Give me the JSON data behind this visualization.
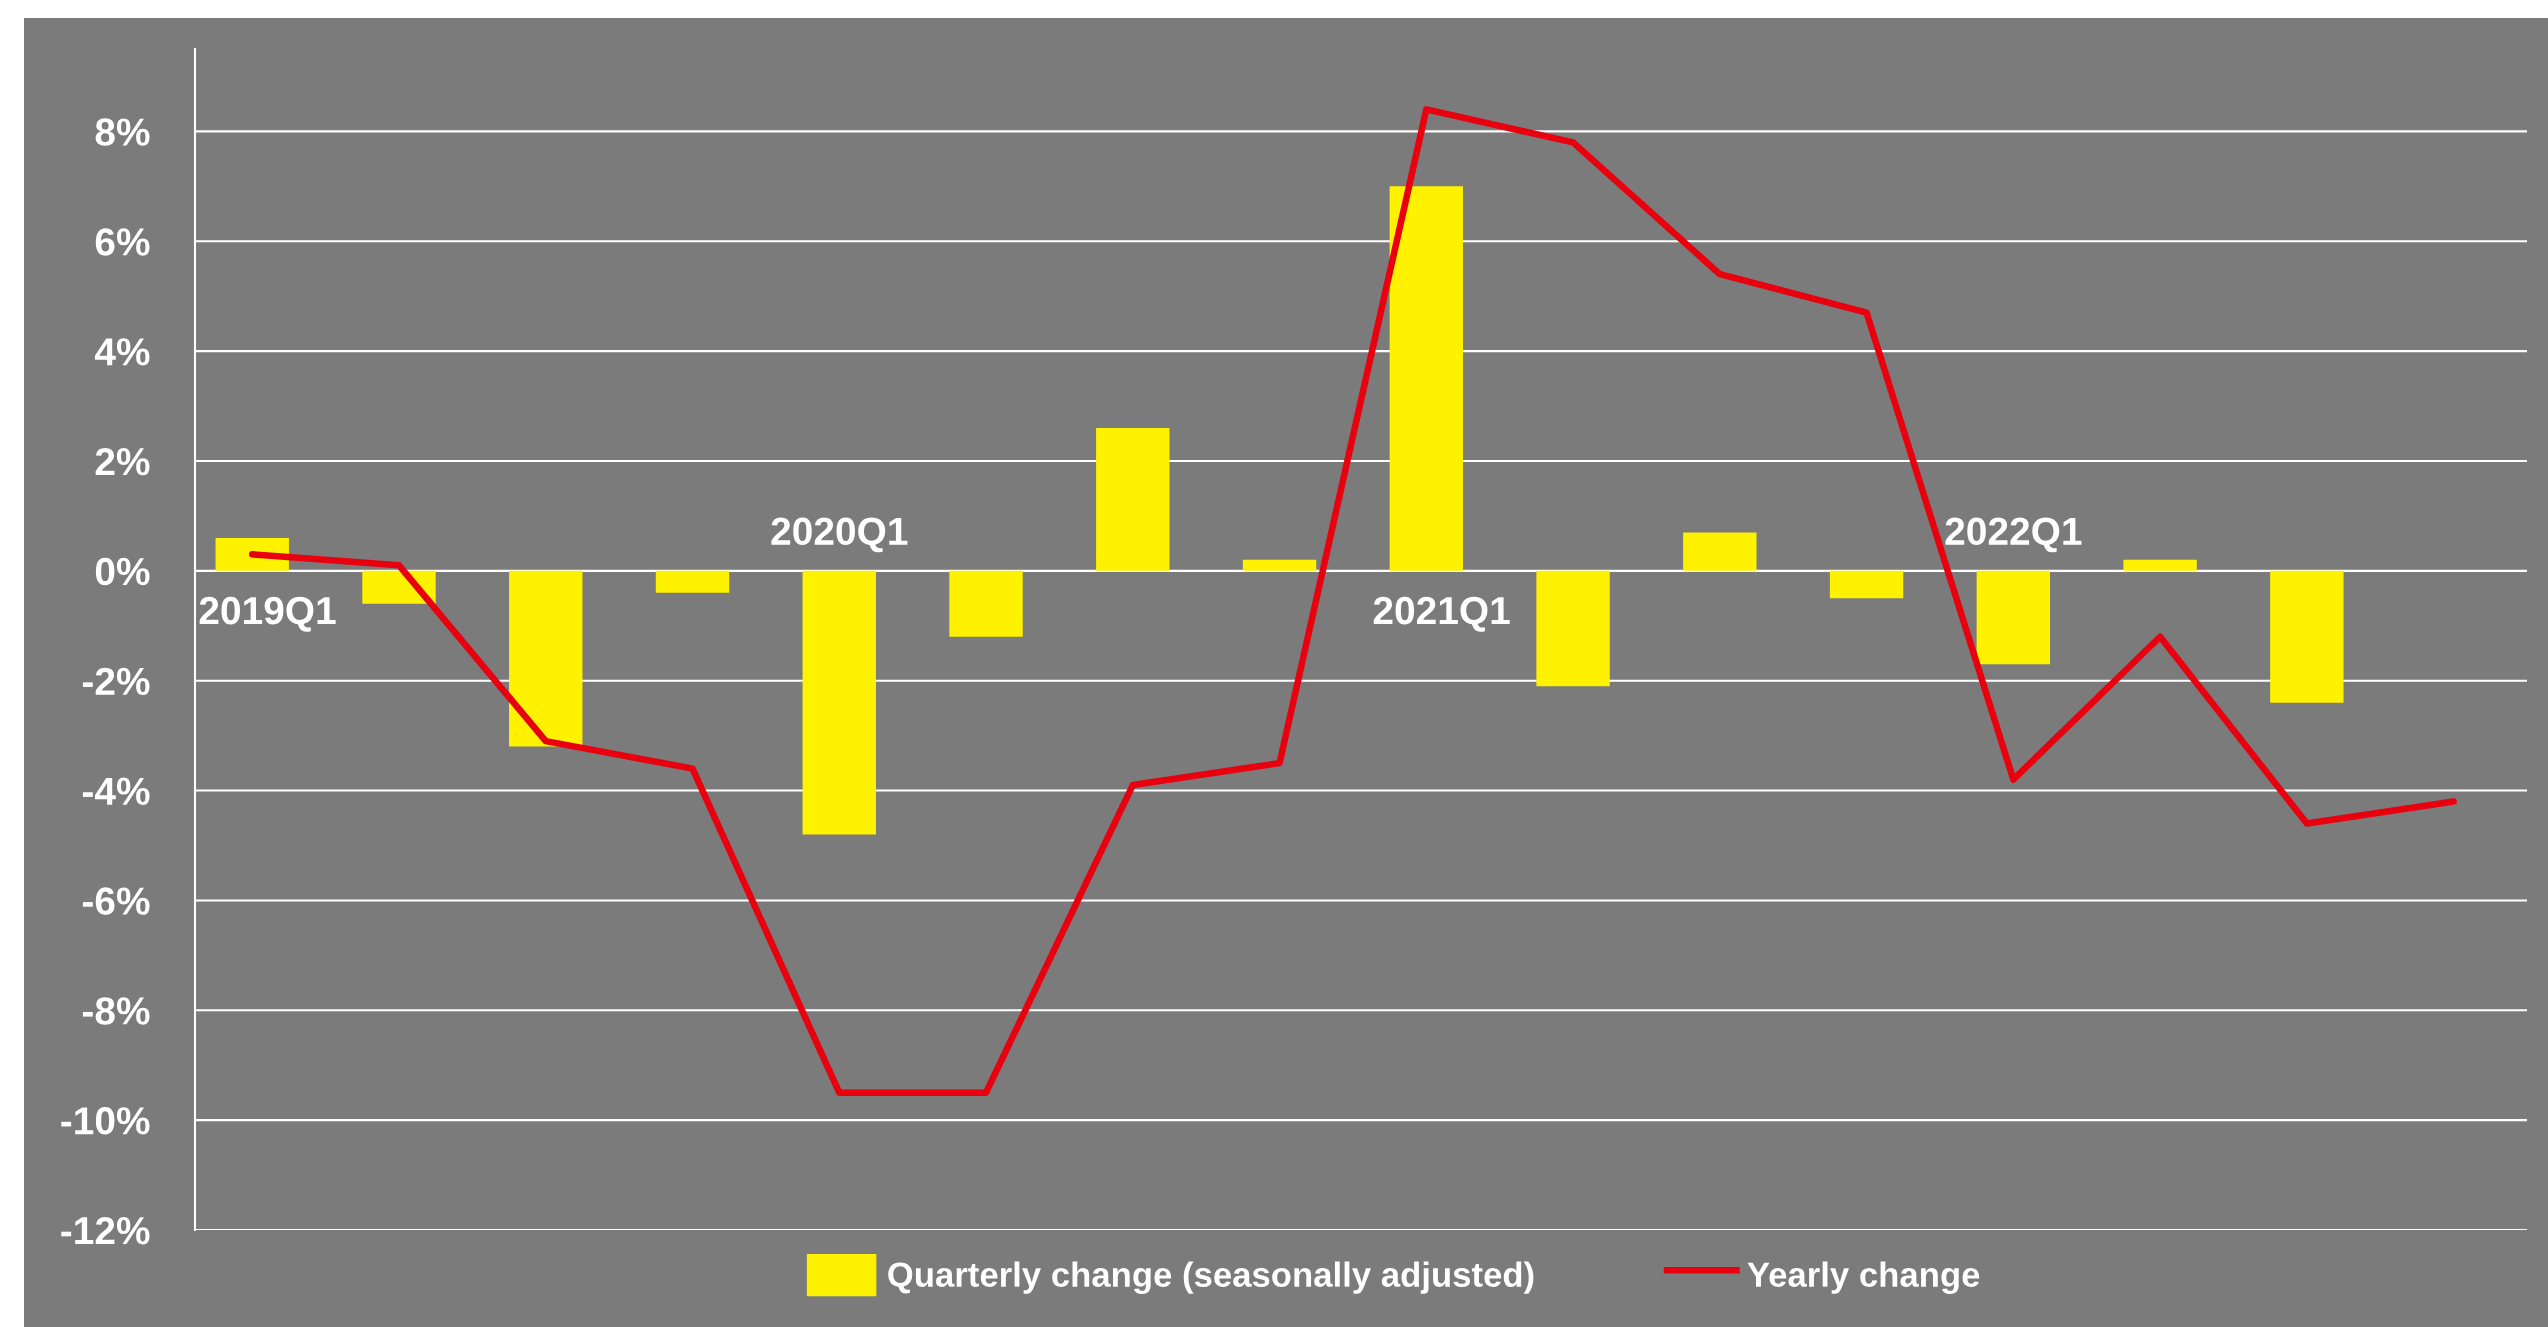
{
  "chart_data": {
    "type": "bar",
    "categories": [
      "2019Q1",
      null,
      null,
      null,
      "2020Q1",
      null,
      null,
      null,
      "2021Q1",
      null,
      null,
      null,
      "2022Q1",
      null,
      null,
      null
    ],
    "series": [
      {
        "name": "Quarterly change (seasonally adjusted)",
        "color": "#fff200",
        "values": [
          0.6,
          -0.6,
          -3.2,
          -0.4,
          -4.8,
          -1.2,
          2.6,
          0.2,
          7.0,
          -2.1,
          0.7,
          -0.5,
          -1.7,
          0.2,
          -2.4,
          null
        ]
      },
      {
        "name": "Yearly change",
        "type": "line",
        "color": "#e8000f",
        "values": [
          0.3,
          0.1,
          -3.1,
          -3.6,
          -9.5,
          -9.5,
          -3.9,
          -3.5,
          8.4,
          7.8,
          5.4,
          4.7,
          -3.8,
          -1.2,
          -4.6,
          -4.2
        ]
      }
    ],
    "ylim": [
      -12,
      9.5
    ],
    "yticks": [
      {
        "value": -12,
        "label": "-12%"
      },
      {
        "value": -10,
        "label": "-10%"
      },
      {
        "value": -8,
        "label": "-8%"
      },
      {
        "value": -6,
        "label": "-6%"
      },
      {
        "value": -4,
        "label": "-4%"
      },
      {
        "value": -2,
        "label": "-2%"
      },
      {
        "value": 0,
        "label": "0%"
      },
      {
        "value": 2,
        "label": "2%"
      },
      {
        "value": 4,
        "label": "4%"
      },
      {
        "value": 6,
        "label": "6%"
      },
      {
        "value": 8,
        "label": "8%"
      }
    ],
    "grid": "y",
    "legend": "bottom"
  }
}
